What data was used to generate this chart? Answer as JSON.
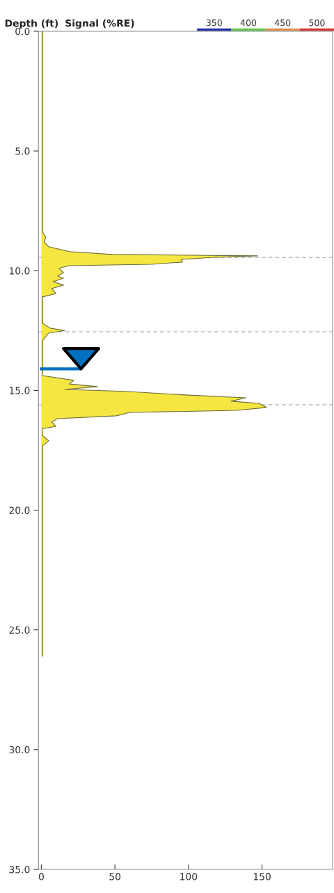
{
  "chart_data": {
    "type": "area",
    "orientation": "horizontal",
    "xlabel": "Signal (%RE)",
    "ylabel": "Depth (ft)",
    "x": [
      0,
      8.4,
      8.6,
      8.8,
      9.0,
      9.2,
      9.32,
      9.38,
      9.44,
      9.53,
      9.64,
      9.73,
      9.79,
      9.9,
      10.08,
      10.22,
      10.31,
      10.46,
      10.6,
      10.75,
      10.95,
      11.1,
      11.3,
      12.2,
      12.4,
      12.5,
      12.6,
      12.9,
      13.2,
      14.2,
      14.38,
      14.58,
      14.73,
      14.84,
      14.96,
      15.04,
      15.19,
      15.31,
      15.45,
      15.54,
      15.71,
      15.83,
      15.92,
      16.06,
      16.18,
      16.32,
      16.5,
      16.6,
      16.9,
      17.1,
      17.3,
      17.6,
      20,
      26.1
    ],
    "series": [
      {
        "color": "#f5e642",
        "values": [
          1,
          1,
          3,
          2,
          5,
          19,
          48,
          147,
          117,
          95,
          96,
          75,
          19,
          12,
          15,
          11,
          15,
          8,
          15,
          7,
          10,
          0.5,
          1,
          1,
          6,
          16,
          5,
          1,
          1,
          1,
          0.5,
          22,
          19,
          38,
          16,
          57,
          98,
          139,
          129,
          148,
          153,
          133,
          60,
          51,
          11,
          7,
          10,
          0.5,
          1,
          5,
          1,
          1,
          1,
          1
        ]
      }
    ],
    "xlim": [
      -2,
      198
    ],
    "xticks": [
      0,
      50,
      100,
      150
    ],
    "ylim": [
      35,
      0
    ],
    "yticks": [
      {
        "value": 0,
        "label": "0.0"
      },
      {
        "value": 5,
        "label": "5.0"
      },
      {
        "value": 10,
        "label": "10.0"
      },
      {
        "value": 15,
        "label": "15.0"
      },
      {
        "value": 20,
        "label": "20.0"
      },
      {
        "value": 25,
        "label": "25.0"
      },
      {
        "value": 30,
        "label": "30.0"
      },
      {
        "value": 35,
        "label": "35.0"
      }
    ],
    "ref_lines": [
      {
        "axis": "y",
        "value": 9.45,
        "color": "#bbbbbb",
        "line_style": "dashed"
      },
      {
        "axis": "y",
        "value": 12.55,
        "color": "#bbbbbb",
        "line_style": "dashed"
      },
      {
        "axis": "y",
        "value": 15.6,
        "color": "#bbbbbb",
        "line_style": "dashed"
      },
      {
        "axis": "y",
        "value": 14.1,
        "color": "#0070c0",
        "line_style": "solid"
      }
    ],
    "annotations": [
      "350",
      "400",
      "450",
      "500"
    ],
    "grid": false,
    "legend": false
  }
}
